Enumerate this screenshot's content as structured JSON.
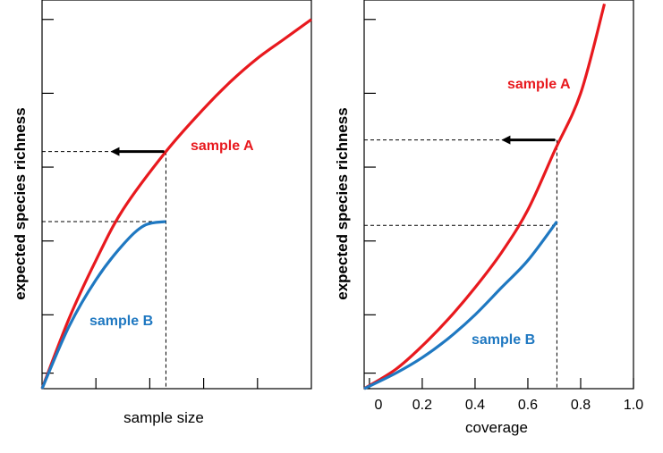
{
  "colors": {
    "sample_a": "#e8191e",
    "sample_b": "#1f78c1",
    "axis": "#000000"
  },
  "chart_data": [
    {
      "type": "line",
      "xlabel": "sample size",
      "ylabel": "expected species richness",
      "xlim": [
        0,
        1
      ],
      "ylim": [
        0,
        1
      ],
      "x_tick_labels": [],
      "y_tick_labels": [],
      "grid": false,
      "series": [
        {
          "name": "sample A",
          "color": "#e8191e",
          "x": [
            0,
            0.1,
            0.2,
            0.3,
            0.46,
            0.6,
            0.7,
            0.8,
            0.9,
            1.0
          ],
          "y": [
            0,
            0.18,
            0.33,
            0.46,
            0.61,
            0.72,
            0.79,
            0.85,
            0.9,
            0.95
          ]
        },
        {
          "name": "sample B",
          "color": "#1f78c1",
          "x": [
            0,
            0.1,
            0.2,
            0.3,
            0.38,
            0.46
          ],
          "y": [
            0,
            0.16,
            0.28,
            0.37,
            0.42,
            0.43
          ]
        }
      ],
      "annotations": {
        "guide_x": 0.46,
        "guide_y_upper": 0.61,
        "guide_y_lower": 0.43,
        "arrow": "left"
      }
    },
    {
      "type": "line",
      "xlabel": "coverage",
      "ylabel": "expected species richness",
      "xlim": [
        -0.02,
        1.0
      ],
      "ylim": [
        0,
        1
      ],
      "x_tick_labels": [
        "0",
        "0.2",
        "0.4",
        "0.6",
        "0.8",
        "1.0"
      ],
      "x_ticks": [
        0,
        0.2,
        0.4,
        0.6,
        0.8,
        1.0
      ],
      "y_tick_labels": [],
      "grid": false,
      "series": [
        {
          "name": "sample A",
          "color": "#e8191e",
          "x": [
            -0.02,
            0.1,
            0.2,
            0.3,
            0.4,
            0.5,
            0.6,
            0.7,
            0.8,
            0.89
          ],
          "y": [
            0,
            0.05,
            0.11,
            0.18,
            0.26,
            0.35,
            0.46,
            0.61,
            0.76,
            0.99
          ]
        },
        {
          "name": "sample B",
          "color": "#1f78c1",
          "x": [
            -0.02,
            0.1,
            0.2,
            0.3,
            0.4,
            0.5,
            0.6,
            0.71
          ],
          "y": [
            0,
            0.04,
            0.08,
            0.13,
            0.19,
            0.26,
            0.33,
            0.43
          ]
        }
      ],
      "annotations": {
        "guide_x": 0.71,
        "guide_y_upper": 0.64,
        "guide_y_lower": 0.42,
        "arrow": "left"
      }
    }
  ]
}
